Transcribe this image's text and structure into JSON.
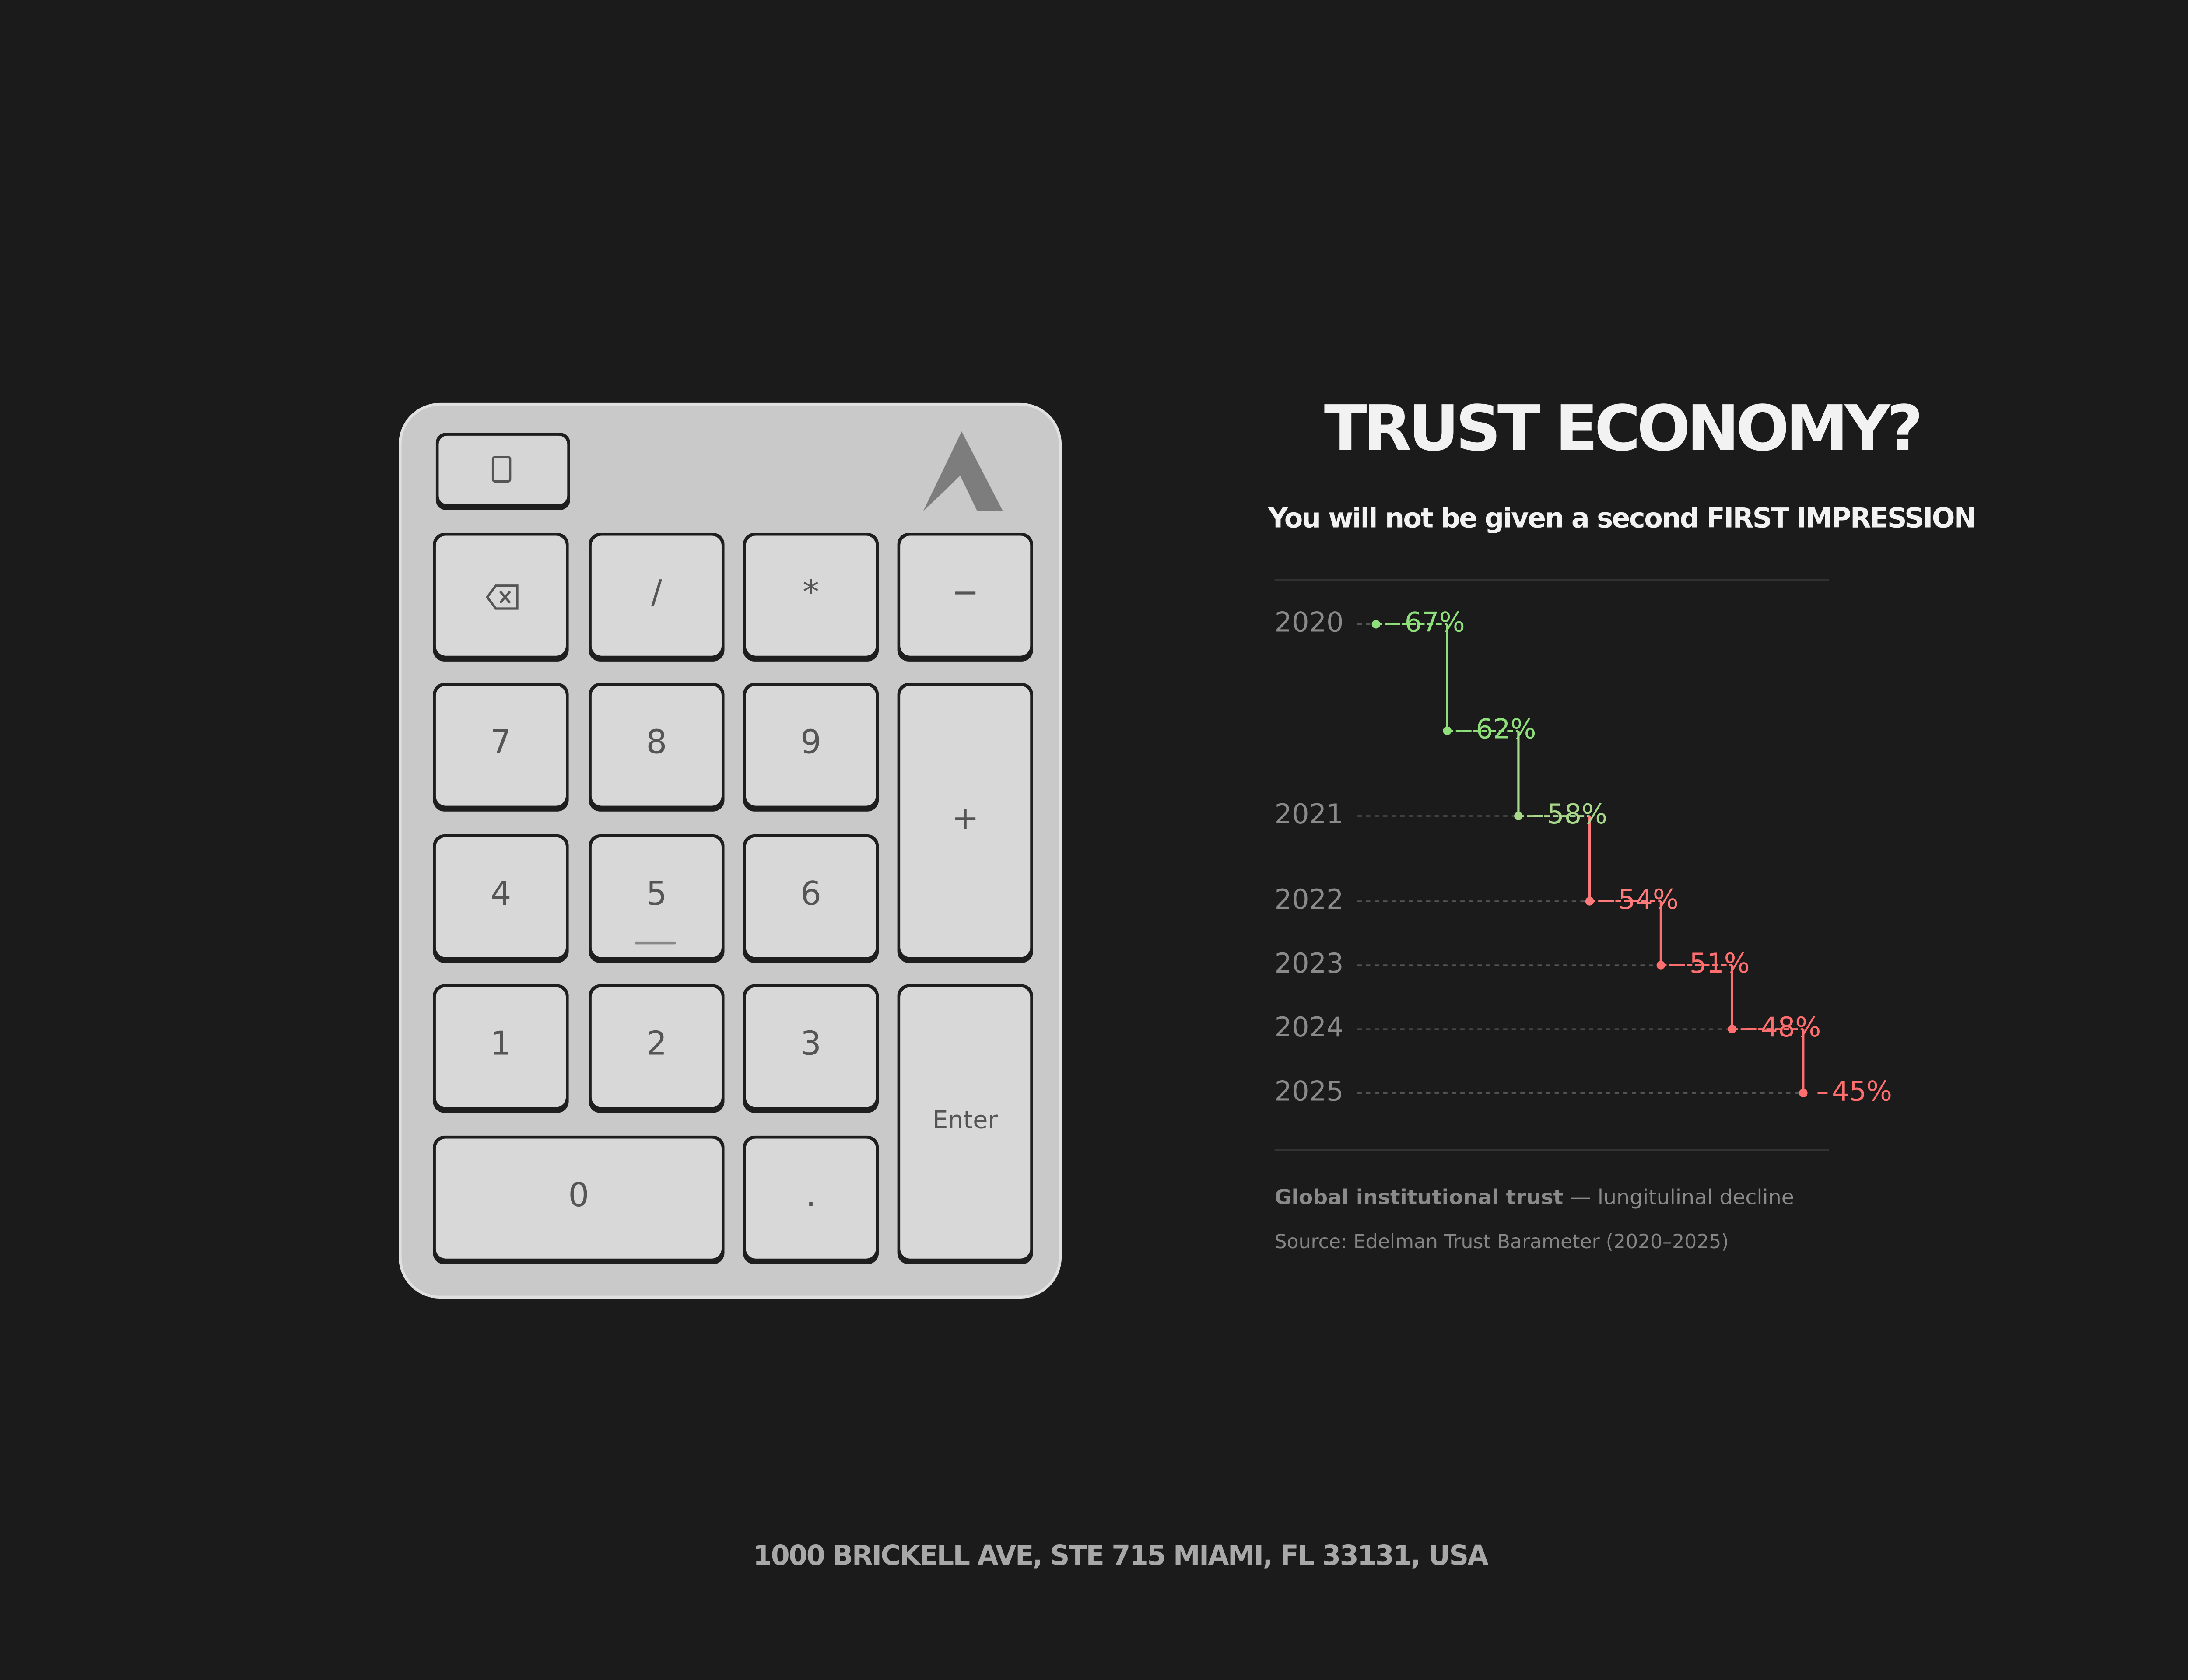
{
  "keypad": {
    "keys": [
      "/",
      "*",
      "−",
      "7",
      "8",
      "9",
      "+",
      "4",
      "5",
      "6",
      "1",
      "2",
      "3",
      "Enter",
      "0",
      "."
    ]
  },
  "chart_data": {
    "type": "step",
    "title": "TRUST ECONOMY?",
    "subtitle": "You will not be given a second FIRST IMPRESSION",
    "categories": [
      "2020",
      null,
      "2021",
      "2022",
      "2023",
      "2024",
      "2025"
    ],
    "values": [
      67,
      62,
      58,
      54,
      51,
      48,
      45
    ],
    "value_labels": [
      "67%",
      "62%",
      "58%",
      "54%",
      "51%",
      "48%",
      "45%"
    ],
    "colors": [
      "#8fe07a",
      "#8fe07a",
      "#a8d88a",
      "#ff7b7b",
      "#ff6f6f",
      "#ff6f6f",
      "#ff6f6f"
    ],
    "ylim": [
      44,
      68
    ],
    "caption_bold": "Global institutional trust",
    "caption": "— lungitulinal decline",
    "source": "Source: Edelman Trust Barameter (2020–2025)"
  },
  "footer": {
    "address": "1000 BRICKELL AVE, STE 715 MIAMI, FL 33131, USA"
  }
}
